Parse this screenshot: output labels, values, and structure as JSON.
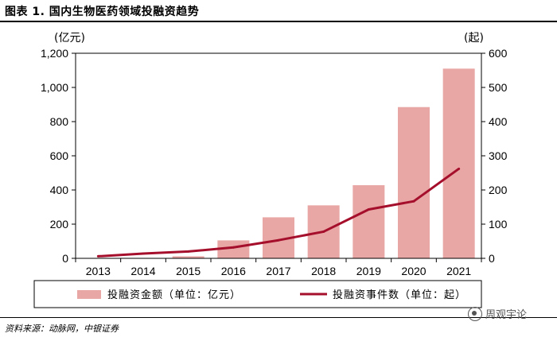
{
  "figure": {
    "title": "图表 1. 国内生物医药领域投融资趋势",
    "source": "资料来源：动脉网，中银证券",
    "watermark": "周观宇论"
  },
  "colors": {
    "bar": "#e8a6a4",
    "line": "#a50f2b",
    "axis": "#000000"
  },
  "chart_data": {
    "type": "bar+line",
    "categories": [
      "2013",
      "2014",
      "2015",
      "2016",
      "2017",
      "2018",
      "2019",
      "2020",
      "2021"
    ],
    "series": [
      {
        "name": "投融资金额（单位：亿元）",
        "type": "bar",
        "axis": "left",
        "values": [
          0,
          0,
          12,
          105,
          240,
          310,
          428,
          885,
          1110
        ]
      },
      {
        "name": "投融资事件数（单位：起）",
        "type": "line",
        "axis": "right",
        "values": [
          6,
          14,
          20,
          32,
          53,
          78,
          143,
          167,
          262
        ]
      }
    ],
    "left_axis": {
      "unit": "(亿元)",
      "ylim": [
        0,
        1200
      ],
      "ticks": [
        0,
        200,
        400,
        600,
        800,
        1000,
        1200
      ],
      "tick_labels": [
        "0",
        "200",
        "400",
        "600",
        "800",
        "1,000",
        "1,200"
      ]
    },
    "right_axis": {
      "unit": "(起)",
      "ylim": [
        0,
        600
      ],
      "ticks": [
        0,
        100,
        200,
        300,
        400,
        500,
        600
      ],
      "tick_labels": [
        "0",
        "100",
        "200",
        "300",
        "400",
        "500",
        "600"
      ]
    },
    "legend_position": "bottom"
  }
}
